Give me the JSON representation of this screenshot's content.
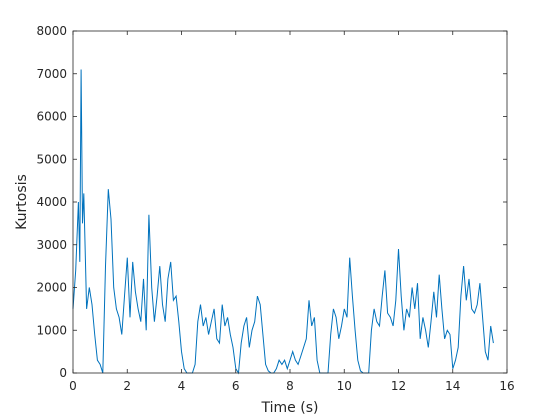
{
  "chart_data": {
    "type": "line",
    "xlabel": "Time (s)",
    "ylabel": "Kurtosis",
    "xlim": [
      0,
      16
    ],
    "ylim": [
      0,
      8000
    ],
    "xticks": [
      0,
      2,
      4,
      6,
      8,
      10,
      12,
      14,
      16
    ],
    "yticks": [
      0,
      1000,
      2000,
      3000,
      4000,
      5000,
      6000,
      7000,
      8000
    ],
    "grid": false,
    "box": true,
    "series": [
      {
        "color": "#0072bd",
        "x": [
          0.0,
          0.1,
          0.2,
          0.25,
          0.3,
          0.35,
          0.4,
          0.5,
          0.6,
          0.7,
          0.8,
          0.9,
          1.0,
          1.1,
          1.2,
          1.3,
          1.4,
          1.5,
          1.6,
          1.7,
          1.8,
          1.9,
          2.0,
          2.1,
          2.2,
          2.3,
          2.4,
          2.5,
          2.6,
          2.7,
          2.8,
          2.9,
          3.0,
          3.1,
          3.2,
          3.3,
          3.4,
          3.5,
          3.6,
          3.7,
          3.8,
          3.9,
          4.0,
          4.1,
          4.2,
          4.3,
          4.4,
          4.5,
          4.6,
          4.7,
          4.8,
          4.9,
          5.0,
          5.1,
          5.2,
          5.3,
          5.4,
          5.5,
          5.6,
          5.7,
          5.8,
          5.9,
          6.0,
          6.1,
          6.2,
          6.3,
          6.4,
          6.5,
          6.6,
          6.7,
          6.8,
          6.9,
          7.0,
          7.1,
          7.2,
          7.3,
          7.4,
          7.5,
          7.6,
          7.7,
          7.8,
          7.9,
          8.0,
          8.1,
          8.2,
          8.3,
          8.4,
          8.5,
          8.6,
          8.7,
          8.8,
          8.9,
          9.0,
          9.1,
          9.2,
          9.3,
          9.4,
          9.5,
          9.6,
          9.7,
          9.8,
          9.9,
          10.0,
          10.1,
          10.2,
          10.3,
          10.4,
          10.5,
          10.6,
          10.7,
          10.8,
          10.9,
          11.0,
          11.1,
          11.2,
          11.3,
          11.4,
          11.5,
          11.6,
          11.7,
          11.8,
          11.9,
          12.0,
          12.1,
          12.2,
          12.3,
          12.4,
          12.5,
          12.6,
          12.7,
          12.8,
          12.9,
          13.0,
          13.1,
          13.2,
          13.3,
          13.4,
          13.5,
          13.6,
          13.7,
          13.8,
          13.9,
          14.0,
          14.1,
          14.2,
          14.3,
          14.4,
          14.5,
          14.6,
          14.7,
          14.8,
          14.9,
          15.0,
          15.1,
          15.2,
          15.3,
          15.4,
          15.5
        ],
        "y": [
          1500,
          2400,
          4000,
          2600,
          7100,
          3500,
          4200,
          1500,
          2000,
          1600,
          900,
          300,
          200,
          0,
          2500,
          4300,
          3600,
          2000,
          1500,
          1300,
          900,
          1800,
          2700,
          1300,
          2600,
          1900,
          1500,
          1200,
          2200,
          1000,
          3700,
          2000,
          1200,
          1800,
          2500,
          1600,
          1200,
          2200,
          2600,
          1700,
          1800,
          1200,
          500,
          100,
          0,
          0,
          0,
          200,
          1200,
          1600,
          1100,
          1300,
          900,
          1200,
          1500,
          800,
          700,
          1600,
          1100,
          1300,
          900,
          600,
          100,
          0,
          700,
          1100,
          1300,
          600,
          1000,
          1200,
          1800,
          1600,
          900,
          200,
          50,
          0,
          0,
          100,
          300,
          200,
          300,
          100,
          300,
          500,
          300,
          200,
          400,
          600,
          800,
          1700,
          1100,
          1300,
          300,
          0,
          0,
          0,
          0,
          900,
          1500,
          1300,
          800,
          1100,
          1500,
          1300,
          2700,
          1800,
          1000,
          300,
          50,
          0,
          0,
          0,
          1000,
          1500,
          1200,
          1100,
          1800,
          2400,
          1400,
          1300,
          1100,
          1700,
          2900,
          1800,
          1000,
          1500,
          1300,
          2000,
          1500,
          2100,
          800,
          1300,
          1000,
          600,
          1200,
          1900,
          1300,
          2300,
          1500,
          800,
          1000,
          900,
          100,
          300,
          600,
          1800,
          2500,
          1700,
          2200,
          1500,
          1400,
          1600,
          2100,
          1300,
          500,
          300,
          1100,
          700
        ]
      }
    ]
  }
}
